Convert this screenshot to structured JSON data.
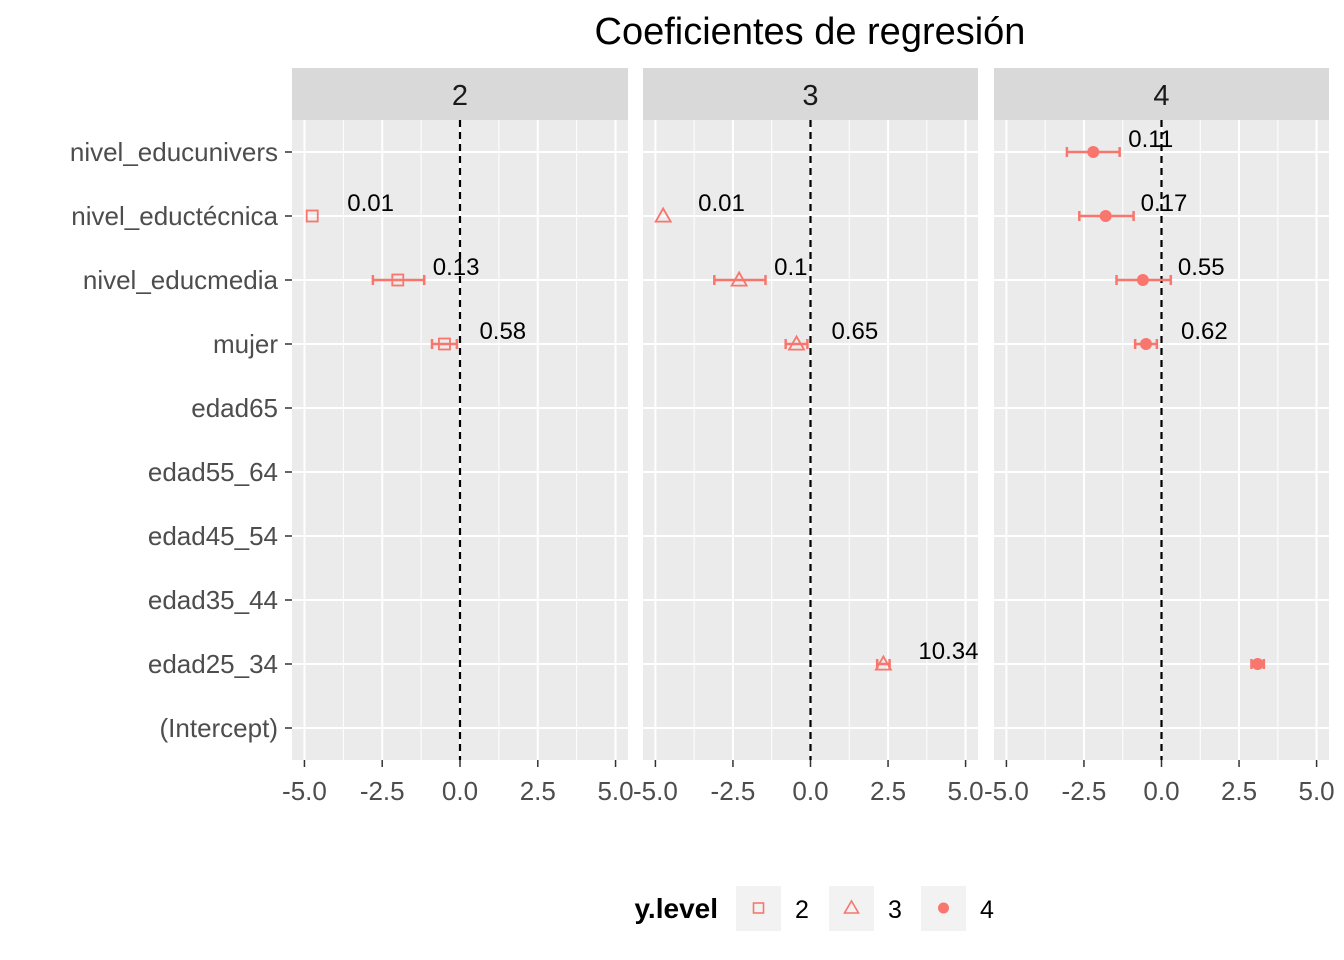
{
  "chart_data": {
    "type": "scatter",
    "title": "Coeficientes de regresión",
    "xlabel": "",
    "ylabel": "",
    "xlim": [
      -5.4,
      5.4
    ],
    "x_ticks": [
      -5.0,
      -2.5,
      0.0,
      2.5,
      5.0
    ],
    "x_tick_labels": [
      "-5.0",
      "-2.5",
      "0.0",
      "2.5",
      "5.0"
    ],
    "y_categories": [
      "(Intercept)",
      "edad25_34",
      "edad35_44",
      "edad45_54",
      "edad55_64",
      "edad65",
      "mujer",
      "nivel_educmedia",
      "nivel_eductécnica",
      "nivel_educunivers"
    ],
    "reference_line_x": 0,
    "grid": true,
    "legend": {
      "title": "y.level",
      "position": "bottom",
      "items": [
        {
          "label": "2",
          "shape": "square-open"
        },
        {
          "label": "3",
          "shape": "triangle-open"
        },
        {
          "label": "4",
          "shape": "circle-filled"
        }
      ]
    },
    "color": "#F8766D",
    "panels": [
      {
        "strip": "2",
        "shape": "square-open",
        "points": [
          {
            "term": "nivel_eductécnica",
            "estimate": -4.75,
            "lo": null,
            "hi": null,
            "label": "0.01"
          },
          {
            "term": "nivel_educmedia",
            "estimate": -2.0,
            "lo": -2.8,
            "hi": -1.15,
            "label": "0.13"
          },
          {
            "term": "mujer",
            "estimate": -0.5,
            "lo": -0.9,
            "hi": -0.1,
            "label": "0.58"
          }
        ]
      },
      {
        "strip": "3",
        "shape": "triangle-open",
        "points": [
          {
            "term": "nivel_eductécnica",
            "estimate": -4.75,
            "lo": null,
            "hi": null,
            "label": "0.01"
          },
          {
            "term": "nivel_educmedia",
            "estimate": -2.3,
            "lo": -3.1,
            "hi": -1.45,
            "label": "0.1"
          },
          {
            "term": "mujer",
            "estimate": -0.45,
            "lo": -0.8,
            "hi": -0.1,
            "label": "0.65"
          },
          {
            "term": "edad25_34",
            "estimate": 2.35,
            "lo": 2.15,
            "hi": 2.55,
            "label": "10.34"
          }
        ]
      },
      {
        "strip": "4",
        "shape": "circle-filled",
        "points": [
          {
            "term": "nivel_educunivers",
            "estimate": -2.2,
            "lo": -3.05,
            "hi": -1.35,
            "label": "0.11"
          },
          {
            "term": "nivel_eductécnica",
            "estimate": -1.8,
            "lo": -2.65,
            "hi": -0.9,
            "label": "0.17"
          },
          {
            "term": "nivel_educmedia",
            "estimate": -0.6,
            "lo": -1.45,
            "hi": 0.3,
            "label": "0.55"
          },
          {
            "term": "mujer",
            "estimate": -0.5,
            "lo": -0.85,
            "hi": -0.15,
            "label": "0.62"
          },
          {
            "term": "edad25_34",
            "estimate": 3.1,
            "lo": 2.9,
            "hi": 3.3,
            "label": ""
          }
        ]
      }
    ]
  }
}
